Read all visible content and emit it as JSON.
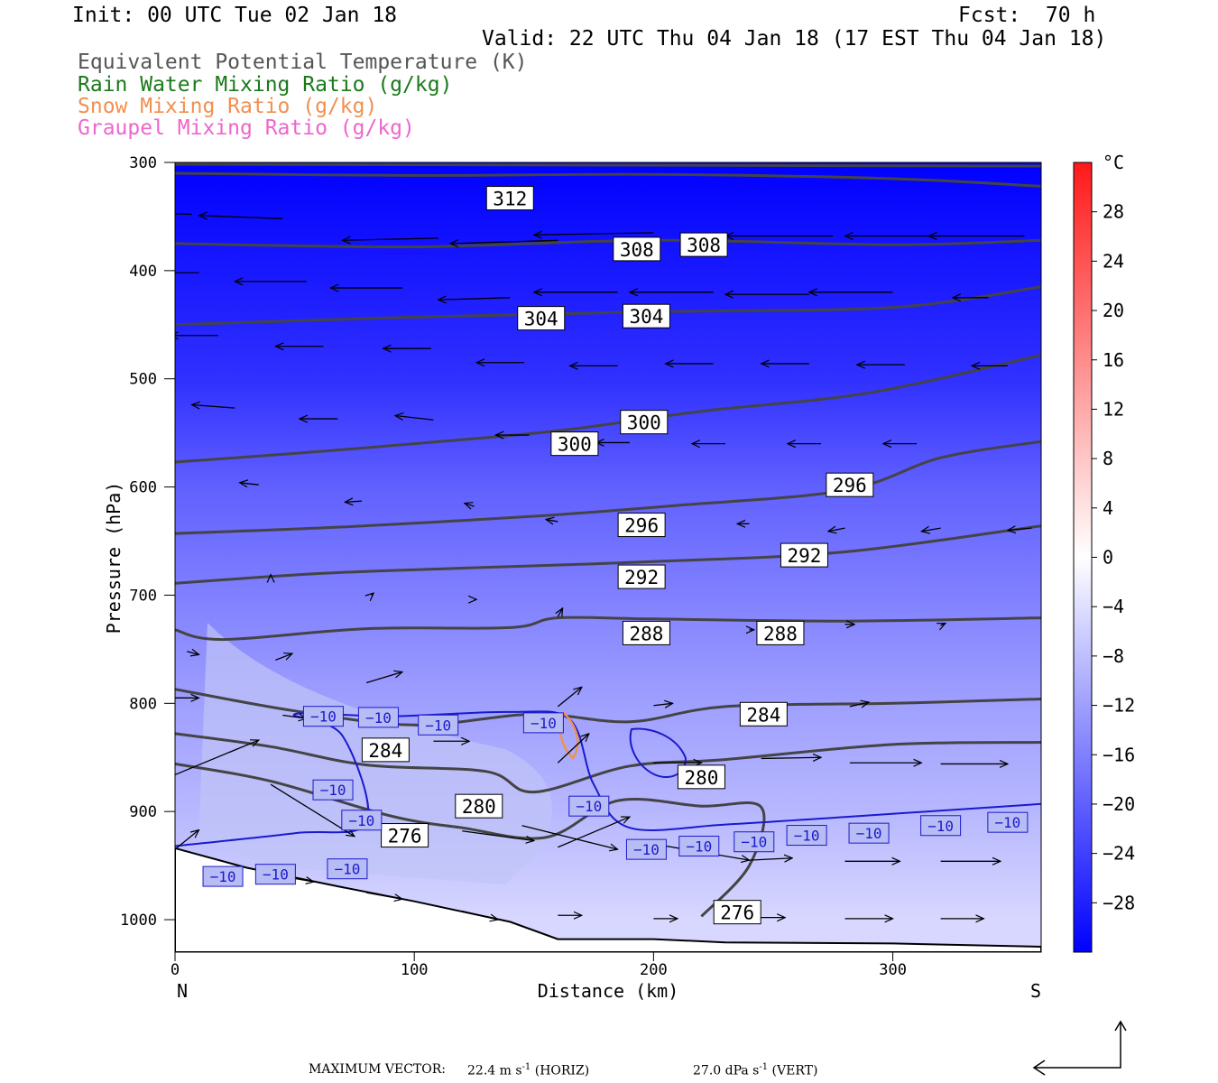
{
  "header": {
    "init": "Init: 00 UTC Tue 02 Jan 18",
    "fcst": "Fcst:  70 h",
    "valid": "Valid: 22 UTC Thu 04 Jan 18 (17 EST Thu 04 Jan 18)",
    "fields": [
      {
        "text": "Equivalent Potential Temperature (K)",
        "color": "#555555"
      },
      {
        "text": "Rain Water Mixing Ratio (g/kg)",
        "color": "#1a7a1a"
      },
      {
        "text": "Snow Mixing Ratio (g/kg)",
        "color": "#f09050"
      },
      {
        "text": "Graupel Mixing Ratio (g/kg)",
        "color": "#ee66cc"
      }
    ]
  },
  "footer": {
    "max_vector_label": "MAXIMUM VECTOR:",
    "horiz": "22.4 m s",
    "horiz_sup": "-1",
    "horiz_tail": " (HORIZ)",
    "vert": "27.0 dPa s",
    "vert_sup": "-1",
    "vert_tail": " (VERT)"
  },
  "chart_data": {
    "type": "cross-section",
    "xlabel": "Distance (km)",
    "ylabel": "Pressure (hPa)",
    "xlim": [
      0,
      362
    ],
    "ylim": [
      1030,
      300
    ],
    "x_ticks": [
      0,
      100,
      200,
      300
    ],
    "y_ticks": [
      300,
      400,
      500,
      600,
      700,
      800,
      900,
      1000
    ],
    "x_end_labels": {
      "left": "N",
      "right": "S"
    },
    "temperature_colorbar": {
      "unit": "°C",
      "min": -32,
      "max": 32,
      "ticks": [
        28,
        24,
        20,
        16,
        12,
        8,
        4,
        0,
        -4,
        -8,
        -12,
        -16,
        -20,
        -24,
        -28
      ]
    },
    "temperature_shading": [
      {
        "p": 300,
        "t": -32
      },
      {
        "p": 500,
        "t": -26
      },
      {
        "p": 600,
        "t": -20
      },
      {
        "p": 700,
        "t": -16
      },
      {
        "p": 800,
        "t": -12
      },
      {
        "p": 900,
        "t": -9
      },
      {
        "p": 1000,
        "t": -5
      }
    ],
    "theta_e_contours": [
      {
        "level": 312,
        "points": [
          [
            0,
            310
          ],
          [
            100,
            312
          ],
          [
            200,
            311
          ],
          [
            300,
            315
          ],
          [
            362,
            322
          ]
        ]
      },
      {
        "level": 308,
        "points": [
          [
            0,
            375
          ],
          [
            100,
            378
          ],
          [
            200,
            372
          ],
          [
            300,
            376
          ],
          [
            362,
            372
          ]
        ]
      },
      {
        "level": 304,
        "points": [
          [
            0,
            450
          ],
          [
            100,
            443
          ],
          [
            200,
            438
          ],
          [
            300,
            434
          ],
          [
            362,
            415
          ]
        ]
      },
      {
        "level": 300,
        "points": [
          [
            0,
            577
          ],
          [
            50,
            569
          ],
          [
            100,
            560
          ],
          [
            160,
            548
          ],
          [
            220,
            530
          ],
          [
            290,
            513
          ],
          [
            362,
            478
          ]
        ]
      },
      {
        "level": 296,
        "points": [
          [
            0,
            643
          ],
          [
            70,
            637
          ],
          [
            150,
            627
          ],
          [
            210,
            617
          ],
          [
            280,
            603
          ],
          [
            320,
            573
          ],
          [
            362,
            558
          ]
        ]
      },
      {
        "level": 292,
        "points": [
          [
            0,
            689
          ],
          [
            60,
            680
          ],
          [
            120,
            675
          ],
          [
            200,
            669
          ],
          [
            280,
            660
          ],
          [
            362,
            636
          ]
        ]
      },
      {
        "level": 288,
        "points": [
          [
            0,
            732
          ],
          [
            20,
            741
          ],
          [
            80,
            731
          ],
          [
            140,
            730
          ],
          [
            160,
            721
          ],
          [
            200,
            722
          ],
          [
            280,
            724
          ],
          [
            362,
            721
          ]
        ]
      },
      {
        "level": 284,
        "points": [
          [
            0,
            787
          ],
          [
            50,
            807
          ],
          [
            100,
            820
          ],
          [
            150,
            810
          ],
          [
            190,
            817
          ],
          [
            230,
            803
          ],
          [
            300,
            800
          ],
          [
            362,
            796
          ]
        ]
      },
      {
        "level": 280,
        "points": [
          [
            0,
            828
          ],
          [
            40,
            840
          ],
          [
            80,
            857
          ],
          [
            130,
            863
          ],
          [
            150,
            882
          ],
          [
            190,
            858
          ],
          [
            230,
            852
          ],
          [
            300,
            838
          ],
          [
            362,
            836
          ]
        ]
      },
      {
        "level": 276,
        "points": [
          [
            0,
            856
          ],
          [
            40,
            872
          ],
          [
            90,
            904
          ],
          [
            120,
            915
          ],
          [
            155,
            924
          ],
          [
            185,
            890
          ],
          [
            220,
            895
          ],
          [
            245,
            896
          ],
          [
            240,
            950
          ],
          [
            220,
            997
          ]
        ]
      }
    ],
    "minus10_isotherm": [
      [
        0,
        932
      ],
      [
        50,
        920
      ],
      [
        80,
        910
      ],
      [
        70,
        830
      ],
      [
        50,
        810
      ],
      [
        90,
        812
      ],
      [
        140,
        808
      ],
      [
        165,
        815
      ],
      [
        175,
        875
      ],
      [
        190,
        915
      ],
      [
        230,
        912
      ],
      [
        280,
        905
      ],
      [
        362,
        893
      ]
    ],
    "contour_labels": {
      "theta_e": [
        {
          "text": "312",
          "x": 140,
          "p": 333
        },
        {
          "text": "308",
          "x": 193,
          "p": 380
        },
        {
          "text": "308",
          "x": 221,
          "p": 376
        },
        {
          "text": "304",
          "x": 153,
          "p": 444
        },
        {
          "text": "304",
          "x": 197,
          "p": 442
        },
        {
          "text": "300",
          "x": 167,
          "p": 560
        },
        {
          "text": "300",
          "x": 196,
          "p": 540
        },
        {
          "text": "296",
          "x": 195,
          "p": 635
        },
        {
          "text": "296",
          "x": 282,
          "p": 598
        },
        {
          "text": "292",
          "x": 195,
          "p": 683
        },
        {
          "text": "292",
          "x": 263,
          "p": 663
        },
        {
          "text": "288",
          "x": 197,
          "p": 735
        },
        {
          "text": "288",
          "x": 253,
          "p": 735
        },
        {
          "text": "284",
          "x": 88,
          "p": 843
        },
        {
          "text": "284",
          "x": 246,
          "p": 810
        },
        {
          "text": "280",
          "x": 127,
          "p": 895
        },
        {
          "text": "280",
          "x": 220,
          "p": 868
        },
        {
          "text": "276",
          "x": 96,
          "p": 922
        },
        {
          "text": "276",
          "x": 235,
          "p": 993
        }
      ],
      "temperature": [
        {
          "text": "−10",
          "x": 62,
          "p": 812
        },
        {
          "text": "−10",
          "x": 85,
          "p": 813
        },
        {
          "text": "−10",
          "x": 110,
          "p": 820
        },
        {
          "text": "−10",
          "x": 154,
          "p": 818
        },
        {
          "text": "−10",
          "x": 66,
          "p": 880
        },
        {
          "text": "−10",
          "x": 78,
          "p": 908
        },
        {
          "text": "−10",
          "x": 173,
          "p": 895
        },
        {
          "text": "−10",
          "x": 72,
          "p": 953
        },
        {
          "text": "−10",
          "x": 20,
          "p": 960
        },
        {
          "text": "−10",
          "x": 42,
          "p": 958
        },
        {
          "text": "−10",
          "x": 197,
          "p": 935
        },
        {
          "text": "−10",
          "x": 219,
          "p": 932
        },
        {
          "text": "−10",
          "x": 242,
          "p": 928
        },
        {
          "text": "−10",
          "x": 264,
          "p": 922
        },
        {
          "text": "−10",
          "x": 290,
          "p": 920
        },
        {
          "text": "−10",
          "x": 320,
          "p": 913
        },
        {
          "text": "−10",
          "x": 348,
          "p": 910
        }
      ]
    },
    "terrain": [
      [
        0,
        934
      ],
      [
        30,
        952
      ],
      [
        70,
        970
      ],
      [
        100,
        983
      ],
      [
        140,
        1002
      ],
      [
        160,
        1018
      ],
      [
        200,
        1018
      ],
      [
        230,
        1021
      ],
      [
        300,
        1022
      ],
      [
        362,
        1025
      ]
    ],
    "wind_vectors": [
      {
        "x": 7,
        "p": 348,
        "dx": -26,
        "dp": -2
      },
      {
        "x": 45,
        "p": 352,
        "dx": -35,
        "dp": -3
      },
      {
        "x": 110,
        "p": 370,
        "dx": -40,
        "dp": 2
      },
      {
        "x": 160,
        "p": 372,
        "dx": -45,
        "dp": 3
      },
      {
        "x": 200,
        "p": 365,
        "dx": -50,
        "dp": 2
      },
      {
        "x": 275,
        "p": 368,
        "dx": -45,
        "dp": 0
      },
      {
        "x": 320,
        "p": 368,
        "dx": -40,
        "dp": 0
      },
      {
        "x": 355,
        "p": 368,
        "dx": -40,
        "dp": 0
      },
      {
        "x": 10,
        "p": 402,
        "dx": -30,
        "dp": 0
      },
      {
        "x": 55,
        "p": 410,
        "dx": -30,
        "dp": 0
      },
      {
        "x": 95,
        "p": 416,
        "dx": -30,
        "dp": 0
      },
      {
        "x": 140,
        "p": 425,
        "dx": -30,
        "dp": 2
      },
      {
        "x": 185,
        "p": 420,
        "dx": -35,
        "dp": 0
      },
      {
        "x": 225,
        "p": 420,
        "dx": -35,
        "dp": 0
      },
      {
        "x": 265,
        "p": 422,
        "dx": -35,
        "dp": 0
      },
      {
        "x": 300,
        "p": 420,
        "dx": -35,
        "dp": 0
      },
      {
        "x": 340,
        "p": 425,
        "dx": -15,
        "dp": 0
      },
      {
        "x": 18,
        "p": 460,
        "dx": -20,
        "dp": 0
      },
      {
        "x": 62,
        "p": 470,
        "dx": -20,
        "dp": 0
      },
      {
        "x": 107,
        "p": 472,
        "dx": -20,
        "dp": 0
      },
      {
        "x": 146,
        "p": 485,
        "dx": -20,
        "dp": 0
      },
      {
        "x": 185,
        "p": 488,
        "dx": -20,
        "dp": 0
      },
      {
        "x": 225,
        "p": 486,
        "dx": -20,
        "dp": 0
      },
      {
        "x": 265,
        "p": 486,
        "dx": -20,
        "dp": 0
      },
      {
        "x": 305,
        "p": 487,
        "dx": -20,
        "dp": 0
      },
      {
        "x": 348,
        "p": 488,
        "dx": -15,
        "dp": 0
      },
      {
        "x": 25,
        "p": 527,
        "dx": -18,
        "dp": -3
      },
      {
        "x": 68,
        "p": 537,
        "dx": -16,
        "dp": 0
      },
      {
        "x": 108,
        "p": 538,
        "dx": -16,
        "dp": -4
      },
      {
        "x": 148,
        "p": 552,
        "dx": -14,
        "dp": 0
      },
      {
        "x": 190,
        "p": 559,
        "dx": -14,
        "dp": 0
      },
      {
        "x": 230,
        "p": 560,
        "dx": -14,
        "dp": 0
      },
      {
        "x": 270,
        "p": 560,
        "dx": -14,
        "dp": 0
      },
      {
        "x": 310,
        "p": 560,
        "dx": -14,
        "dp": 0
      },
      {
        "x": 35,
        "p": 598,
        "dx": -8,
        "dp": -2
      },
      {
        "x": 78,
        "p": 613,
        "dx": -7,
        "dp": 1
      },
      {
        "x": 125,
        "p": 618,
        "dx": -4,
        "dp": -3
      },
      {
        "x": 160,
        "p": 632,
        "dx": -5,
        "dp": -2
      },
      {
        "x": 200,
        "p": 634,
        "dx": -5,
        "dp": 0
      },
      {
        "x": 240,
        "p": 634,
        "dx": -5,
        "dp": 0
      },
      {
        "x": 280,
        "p": 638,
        "dx": -7,
        "dp": 3
      },
      {
        "x": 320,
        "p": 638,
        "dx": -8,
        "dp": 3
      },
      {
        "x": 358,
        "p": 638,
        "dx": -10,
        "dp": 2
      },
      {
        "x": 40,
        "p": 682,
        "dx": 0,
        "dp": -1
      },
      {
        "x": 82,
        "p": 700,
        "dx": 1,
        "dp": -2
      },
      {
        "x": 125,
        "p": 704,
        "dx": 1,
        "dp": 0
      },
      {
        "x": 5,
        "p": 752,
        "dx": 5,
        "dp": 3
      },
      {
        "x": 42,
        "p": 760,
        "dx": 7,
        "dp": -6
      },
      {
        "x": 80,
        "p": 781,
        "dx": 15,
        "dp": -10
      },
      {
        "x": 160,
        "p": 720,
        "dx": 2,
        "dp": -8
      },
      {
        "x": 200,
        "p": 730,
        "dx": 3,
        "dp": -2
      },
      {
        "x": 240,
        "p": 732,
        "dx": 2,
        "dp": 0
      },
      {
        "x": 280,
        "p": 727,
        "dx": 4,
        "dp": 0
      },
      {
        "x": 320,
        "p": 728,
        "dx": 2,
        "dp": -2
      },
      {
        "x": 0,
        "p": 795,
        "dx": 10,
        "dp": 0
      },
      {
        "x": 160,
        "p": 803,
        "dx": 10,
        "dp": -18
      },
      {
        "x": 200,
        "p": 802,
        "dx": 8,
        "dp": -2
      },
      {
        "x": 282,
        "p": 803,
        "dx": 8,
        "dp": -4
      },
      {
        "x": 0,
        "p": 866,
        "dx": 35,
        "dp": -32
      },
      {
        "x": 45,
        "p": 811,
        "dx": 10,
        "dp": 3
      },
      {
        "x": 80,
        "p": 818,
        "dx": 12,
        "dp": -8
      },
      {
        "x": 108,
        "p": 835,
        "dx": 15,
        "dp": 0
      },
      {
        "x": 160,
        "p": 855,
        "dx": 13,
        "dp": -27
      },
      {
        "x": 200,
        "p": 855,
        "dx": 20,
        "dp": 0
      },
      {
        "x": 245,
        "p": 851,
        "dx": 25,
        "dp": -1
      },
      {
        "x": 282,
        "p": 855,
        "dx": 30,
        "dp": 0
      },
      {
        "x": 320,
        "p": 856,
        "dx": 28,
        "dp": 0
      },
      {
        "x": 0,
        "p": 935,
        "dx": 10,
        "dp": -18
      },
      {
        "x": 40,
        "p": 875,
        "dx": 35,
        "dp": 48
      },
      {
        "x": 120,
        "p": 918,
        "dx": 30,
        "dp": 9
      },
      {
        "x": 145,
        "p": 913,
        "dx": 40,
        "dp": 22
      },
      {
        "x": 160,
        "p": 933,
        "dx": 30,
        "dp": -28
      },
      {
        "x": 200,
        "p": 930,
        "dx": 40,
        "dp": 15
      },
      {
        "x": 240,
        "p": 945,
        "dx": 18,
        "dp": -2
      },
      {
        "x": 280,
        "p": 946,
        "dx": 23,
        "dp": 0
      },
      {
        "x": 320,
        "p": 946,
        "dx": 25,
        "dp": 0
      },
      {
        "x": 40,
        "p": 958,
        "dx": 18,
        "dp": 7
      },
      {
        "x": 80,
        "p": 975,
        "dx": 15,
        "dp": 6
      },
      {
        "x": 120,
        "p": 992,
        "dx": 15,
        "dp": 8
      },
      {
        "x": 160,
        "p": 996,
        "dx": 10,
        "dp": 0
      },
      {
        "x": 200,
        "p": 999,
        "dx": 10,
        "dp": 0
      },
      {
        "x": 240,
        "p": 998,
        "dx": 15,
        "dp": 0
      },
      {
        "x": 280,
        "p": 999,
        "dx": 20,
        "dp": 0
      },
      {
        "x": 320,
        "p": 999,
        "dx": 18,
        "dp": 0
      }
    ]
  }
}
